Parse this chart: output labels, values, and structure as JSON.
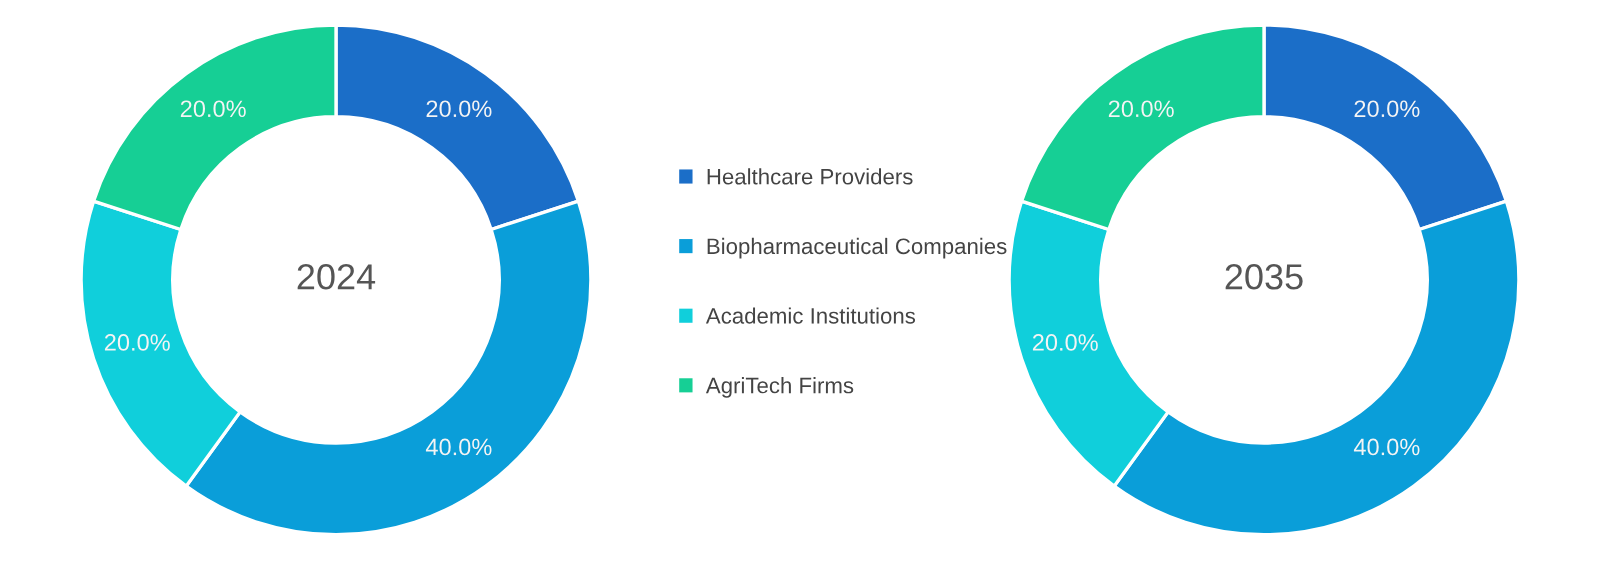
{
  "chart_data": [
    {
      "type": "donut",
      "title": "2024",
      "categories": [
        "Healthcare Providers",
        "Biopharmaceutical Companies",
        "Academic Institutions",
        "AgriTech Firms"
      ],
      "values": [
        20,
        40,
        20,
        20
      ],
      "colors": [
        "#1b6ec8",
        "#0a9ed9",
        "#10cfdb",
        "#16cf95"
      ],
      "value_labels": [
        "20.0%",
        "40.0%",
        "20.0%",
        "20.0%"
      ],
      "legend": "right"
    },
    {
      "type": "donut",
      "title": "2035",
      "values": [
        20,
        40,
        20,
        20
      ],
      "colors": [
        "#1b6ec8",
        "#0a9ed9",
        "#10cfdb",
        "#16cf95"
      ],
      "value_labels": [
        "20.0%",
        "40.0%",
        "20.0%",
        "20.0%"
      ]
    }
  ]
}
